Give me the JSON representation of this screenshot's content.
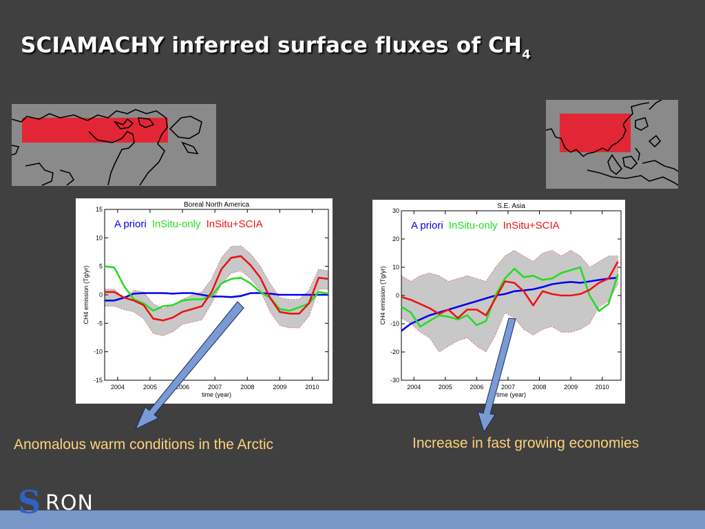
{
  "slide": {
    "title": "SCIAMACHY inferred surface fluxes of CH",
    "title_subscript": "4",
    "caption_left": "Anomalous warm conditions in the Arctic",
    "caption_right": "Increase in fast growing economies",
    "logo_s": "S",
    "logo_rest": "RON"
  },
  "colors": {
    "background": "#404040",
    "caption": "#ffd27a",
    "a_priori": "#0000ee",
    "insitu_only": "#22dd22",
    "insitu_scia": "#ee1111",
    "uncertainty_band": "#c8c8c8",
    "region_box": "#e32636",
    "arrow": "#7a9ad6",
    "bottom_bar": "#7896c8"
  },
  "chart_data": [
    {
      "type": "line",
      "title": "Boreal North America",
      "xlabel": "time (year)",
      "ylabel": "CH4 emission (Tg/yr)",
      "xlim": [
        2003.6,
        2010.5
      ],
      "ylim": [
        -15,
        15
      ],
      "xticks": [
        2004,
        2005,
        2006,
        2007,
        2008,
        2009,
        2010
      ],
      "yticks": [
        -15,
        -10,
        -5,
        0,
        5,
        10,
        15
      ],
      "legend": [
        "A priori",
        "InSitu-only",
        "InSitu+SCIA"
      ],
      "legend_position": "top",
      "x": [
        2003.6,
        2003.9,
        2004.2,
        2004.5,
        2004.8,
        2005.1,
        2005.4,
        2005.7,
        2006.0,
        2006.3,
        2006.6,
        2006.9,
        2007.2,
        2007.5,
        2007.8,
        2008.1,
        2008.4,
        2008.7,
        2009.0,
        2009.3,
        2009.6,
        2009.9,
        2010.2,
        2010.5
      ],
      "series": [
        {
          "name": "A priori",
          "color": "#0000ee",
          "values": [
            -1.0,
            -1.0,
            -0.5,
            0.2,
            0.3,
            0.3,
            0.3,
            0.2,
            0.3,
            0.3,
            0.0,
            -0.3,
            -0.3,
            -0.4,
            -0.2,
            0.3,
            0.3,
            0.2,
            0.0,
            0.0,
            0.0,
            0.0,
            0.0,
            0.0
          ]
        },
        {
          "name": "InSitu-only",
          "color": "#22dd22",
          "values": [
            5.0,
            4.8,
            1.5,
            -0.8,
            -1.5,
            -2.8,
            -2.0,
            -1.8,
            -1.0,
            -0.8,
            -0.8,
            -0.2,
            2.0,
            2.8,
            3.0,
            2.0,
            0.5,
            -0.5,
            -2.5,
            -2.8,
            -2.2,
            -1.5,
            0.5,
            0.2
          ]
        },
        {
          "name": "InSitu+SCIA",
          "color": "#ee1111",
          "values": [
            0.5,
            0.5,
            -0.5,
            -1.0,
            -1.8,
            -4.2,
            -4.5,
            -4.0,
            -3.0,
            -2.5,
            -2.0,
            0.5,
            4.5,
            6.5,
            6.8,
            5.2,
            3.0,
            -0.5,
            -3.0,
            -3.3,
            -3.3,
            -1.5,
            3.0,
            2.8
          ]
        },
        {
          "name": "",
          "color": "#c8c8c8",
          "values": [
            1.0,
            1.0,
            -0.8,
            0.8,
            0.5,
            -1.6,
            -2.4,
            -1.8,
            -0.8,
            0.0,
            0.5,
            2.8,
            6.5,
            8.5,
            8.6,
            7.2,
            5.0,
            2.0,
            -0.5,
            -0.8,
            -0.8,
            0.8,
            4.5,
            4.2
          ],
          "role": "uncertainty_upper"
        },
        {
          "name": "",
          "color": "#c8c8c8",
          "values": [
            -2.0,
            -2.0,
            -2.6,
            -3.0,
            -4.2,
            -6.8,
            -7.2,
            -6.5,
            -5.2,
            -4.8,
            -4.4,
            -1.5,
            1.8,
            3.8,
            4.2,
            2.8,
            0.8,
            -3.0,
            -5.4,
            -5.8,
            -5.8,
            -3.8,
            1.0,
            1.0
          ],
          "role": "uncertainty_lower"
        }
      ]
    },
    {
      "type": "line",
      "title": "S.E. Asia",
      "xlabel": "time (year)",
      "ylabel": "CH4 emission (Tg/yr)",
      "xlim": [
        2003.6,
        2010.6
      ],
      "ylim": [
        -30,
        30
      ],
      "xticks": [
        2004,
        2005,
        2006,
        2007,
        2008,
        2009,
        2010
      ],
      "yticks": [
        -30,
        -20,
        -10,
        0,
        10,
        20,
        30
      ],
      "legend": [
        "A priori",
        "InSitu-only",
        "InSitu+SCIA"
      ],
      "legend_position": "top",
      "x": [
        2003.6,
        2003.9,
        2004.2,
        2004.5,
        2004.8,
        2005.1,
        2005.4,
        2005.7,
        2006.0,
        2006.3,
        2006.6,
        2006.9,
        2007.2,
        2007.5,
        2007.8,
        2008.1,
        2008.4,
        2008.7,
        2009.0,
        2009.3,
        2009.6,
        2009.9,
        2010.2,
        2010.5
      ],
      "series": [
        {
          "name": "A priori",
          "color": "#0000ee",
          "values": [
            -12.5,
            -10.0,
            -8.5,
            -7.0,
            -6.0,
            -5.0,
            -4.0,
            -3.0,
            -2.0,
            -1.0,
            0.0,
            0.5,
            1.5,
            1.8,
            2.2,
            3.0,
            4.0,
            4.5,
            4.8,
            4.5,
            5.0,
            5.5,
            6.0,
            6.3
          ]
        },
        {
          "name": "InSitu-only",
          "color": "#22dd22",
          "values": [
            -4.0,
            -6.0,
            -11.0,
            -9.0,
            -7.0,
            -7.5,
            -8.5,
            -7.0,
            -10.5,
            -9.0,
            0.0,
            6.0,
            9.5,
            6.5,
            7.0,
            5.5,
            6.0,
            8.0,
            9.0,
            10.0,
            0.0,
            -5.5,
            -3.0,
            7.5
          ]
        },
        {
          "name": "InSitu+SCIA",
          "color": "#ee1111",
          "values": [
            -0.5,
            -1.5,
            -3.0,
            -4.5,
            -6.5,
            -5.0,
            -8.0,
            -5.0,
            -5.0,
            -7.0,
            -1.0,
            5.0,
            4.5,
            1.5,
            -3.5,
            1.5,
            0.5,
            0.0,
            0.0,
            0.5,
            2.0,
            4.5,
            6.0,
            12.0
          ]
        },
        {
          "name": "",
          "color": "#c8c8c8",
          "values": [
            7.0,
            5.0,
            7.0,
            8.0,
            7.0,
            5.0,
            6.0,
            7.0,
            6.0,
            5.0,
            10.0,
            14.0,
            16.0,
            14.0,
            12.0,
            15.0,
            16.0,
            14.0,
            16.0,
            14.0,
            10.0,
            12.0,
            14.0,
            14.0
          ],
          "role": "uncertainty_upper"
        },
        {
          "name": "",
          "color": "#c8c8c8",
          "values": [
            -8.0,
            -10.0,
            -13.0,
            -15.0,
            -20.0,
            -18.0,
            -16.0,
            -15.0,
            -18.0,
            -20.0,
            -14.0,
            -6.0,
            -8.0,
            -12.0,
            -14.0,
            -12.0,
            -11.0,
            -13.0,
            -13.0,
            -12.0,
            -10.0,
            -4.0,
            -2.0,
            4.0
          ],
          "role": "uncertainty_lower"
        }
      ]
    }
  ]
}
